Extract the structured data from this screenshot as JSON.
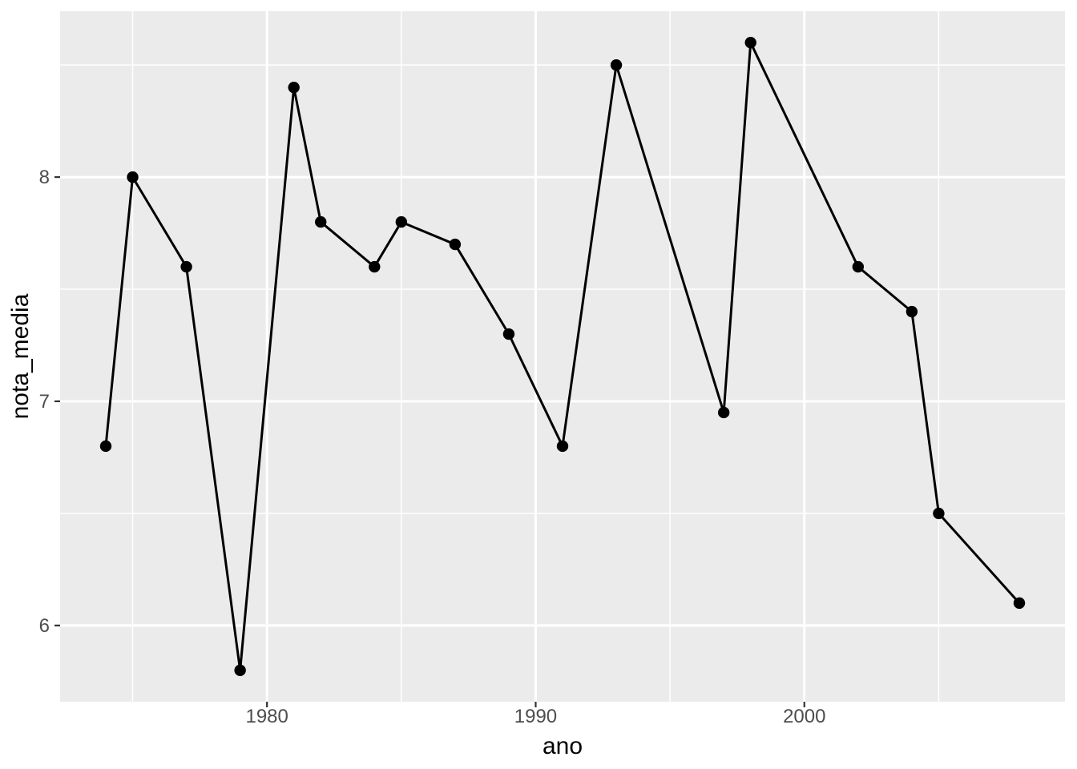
{
  "chart_data": {
    "type": "line",
    "title": "",
    "xlabel": "ano",
    "ylabel": "nota_media",
    "series": [
      {
        "name": "nota_media",
        "x": [
          1974,
          1975,
          1977,
          1979,
          1981,
          1982,
          1984,
          1985,
          1987,
          1989,
          1991,
          1993,
          1997,
          1998,
          2002,
          2004,
          2005,
          2008
        ],
        "y": [
          6.8,
          8.0,
          7.6,
          5.8,
          8.4,
          7.8,
          7.6,
          7.8,
          7.7,
          7.3,
          6.8,
          8.5,
          6.95,
          8.6,
          7.6,
          7.4,
          6.5,
          6.1
        ]
      }
    ],
    "marker": "point",
    "legend_position": "none",
    "grid": true,
    "xlim": [
      1972.3,
      2009.7
    ],
    "ylim": [
      5.66,
      8.74
    ],
    "x_ticks": [
      1980,
      1990,
      2000
    ],
    "y_ticks": [
      6,
      7,
      8
    ],
    "x_minor_gridlines": [
      1975,
      1985,
      1995,
      2005
    ],
    "y_minor_gridlines": [
      6.5,
      7.5,
      8.5
    ],
    "style": {
      "panel_background": "#EBEBEB",
      "gridline_color": "#FFFFFF",
      "line_color": "#000000",
      "point_color": "#000000",
      "tick_label_color": "#4D4D4D",
      "tick_mark_color": "#333333",
      "axis_title_color": "#000000",
      "figure_background": "#FFFFFF"
    }
  }
}
